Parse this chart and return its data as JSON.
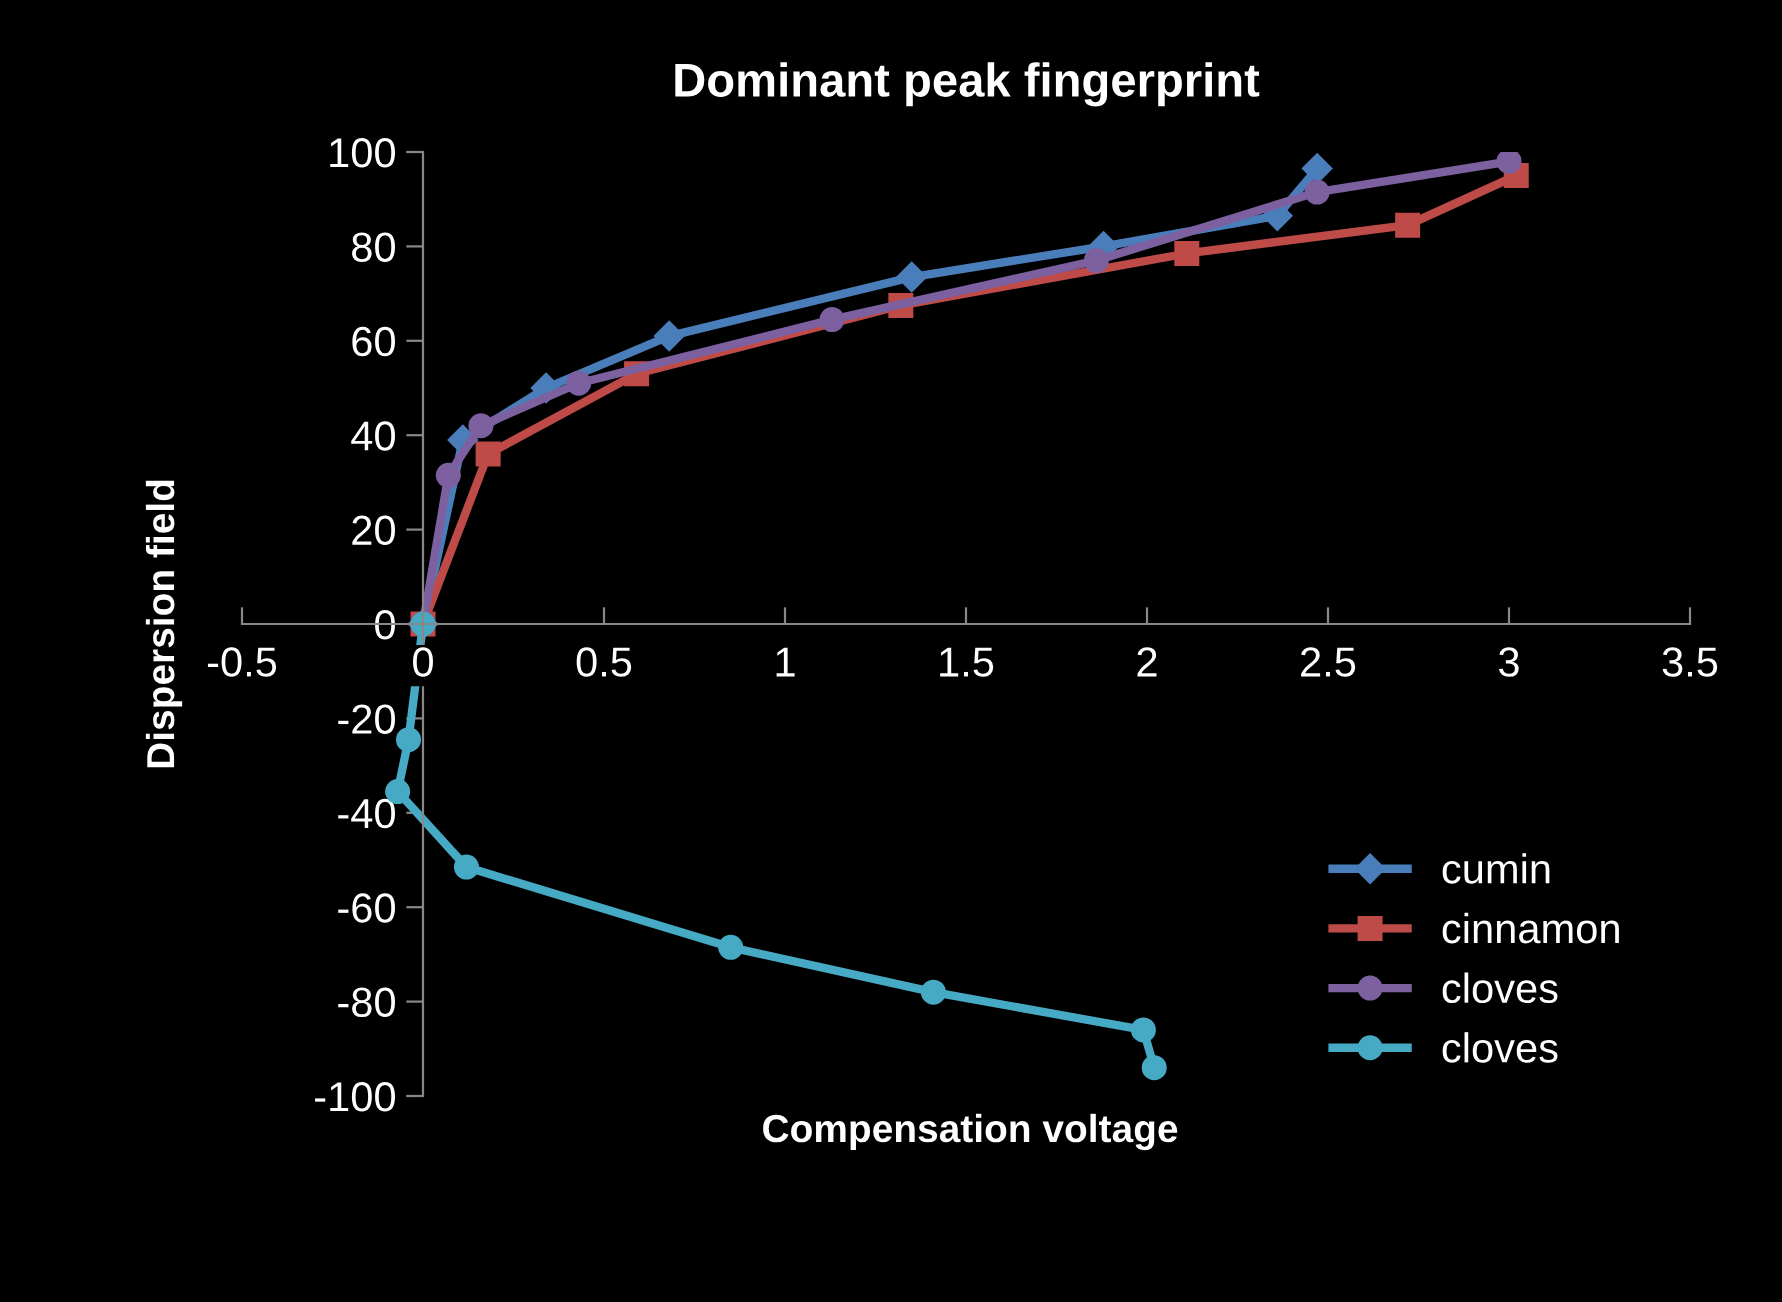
{
  "chart_data": {
    "type": "line",
    "title": "Dominant peak fingerprint",
    "xlabel": "Compensation voltage",
    "ylabel": "Dispersion field",
    "xlim": [
      -0.5,
      3.5
    ],
    "xticks": [
      -0.5,
      0,
      0.5,
      1,
      1.5,
      2,
      2.5,
      3,
      3.5
    ],
    "ylim": [
      -100,
      100
    ],
    "yticks": [
      -100,
      -80,
      -60,
      -40,
      -20,
      0,
      20,
      40,
      60,
      80,
      100
    ],
    "grid": false,
    "legend": "bottom right",
    "line_style": "solid",
    "series": [
      {
        "name": "cumin",
        "color": "#4a7ebb",
        "marker": "diamond",
        "x": [
          0,
          0.11,
          0.34,
          0.68,
          1.35,
          1.88,
          2.36,
          2.47
        ],
        "values": [
          0,
          39,
          50,
          61,
          73.5,
          80,
          86.5,
          96.5
        ]
      },
      {
        "name": "cinnamon",
        "color": "#be4b48",
        "marker": "square",
        "x": [
          0,
          0.18,
          0.59,
          1.32,
          2.11,
          2.72,
          3.02
        ],
        "values": [
          0,
          36,
          53,
          67.5,
          78.5,
          84.5,
          95
        ]
      },
      {
        "name": "cloves",
        "color": "#7d60a0",
        "marker": "circle",
        "x": [
          0,
          0.07,
          0.16,
          0.43,
          1.13,
          1.86,
          2.47,
          3.0
        ],
        "values": [
          0,
          31.5,
          42,
          51,
          64.5,
          77,
          91.5,
          98
        ]
      },
      {
        "name": "cloves",
        "color": "#46aac5",
        "marker": "circle",
        "x": [
          0,
          -0.04,
          -0.07,
          0.12,
          0.85,
          1.41,
          1.99,
          2.02
        ],
        "values": [
          0,
          -24.5,
          -35.5,
          -51.5,
          -68.5,
          -78,
          -86,
          -94
        ]
      }
    ]
  }
}
